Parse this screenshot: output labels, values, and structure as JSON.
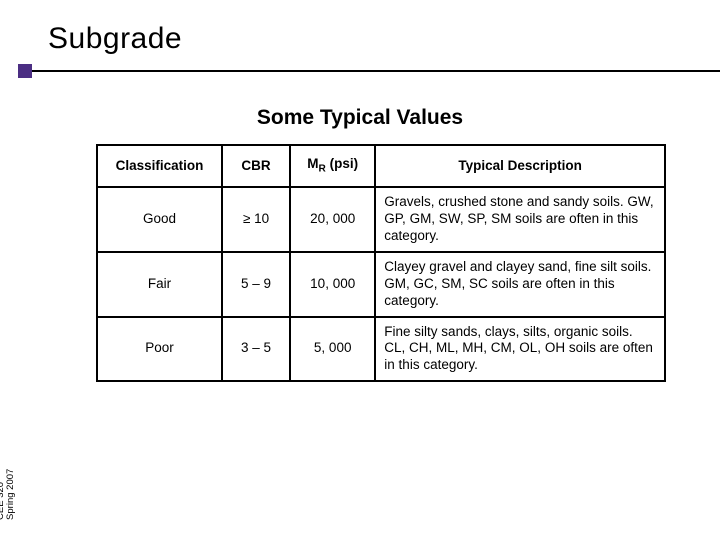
{
  "title": "Subgrade",
  "subtitle": "Some Typical Values",
  "accent_color": "#4b2e83",
  "table": {
    "columns": [
      {
        "label": "Classification"
      },
      {
        "label": "CBR"
      },
      {
        "label_html": "M<sub>R</sub> (psi)",
        "label_plain": "MR (psi)",
        "sub_text": "R",
        "prefix": "M",
        "suffix": " (psi)"
      },
      {
        "label": "Typical Description"
      }
    ],
    "rows": [
      {
        "classification": "Good",
        "cbr": "≥ 10",
        "mr_psi": "20, 000",
        "description": "Gravels, crushed stone and sandy soils.  GW, GP, GM, SW, SP, SM soils are often in this category."
      },
      {
        "classification": "Fair",
        "cbr": "5 – 9",
        "mr_psi": "10, 000",
        "description": "Clayey gravel and clayey sand, fine silt soils.  GM, GC, SM, SC soils are often in this category."
      },
      {
        "classification": "Poor",
        "cbr": "3 – 5",
        "mr_psi": "5, 000",
        "description": "Fine silty sands, clays, silts, organic soils.  CL, CH, ML, MH, CM, OL, OH soils are often in this category."
      }
    ]
  },
  "footer": {
    "line1": "CEE 320",
    "line2": "Spring 2007"
  }
}
